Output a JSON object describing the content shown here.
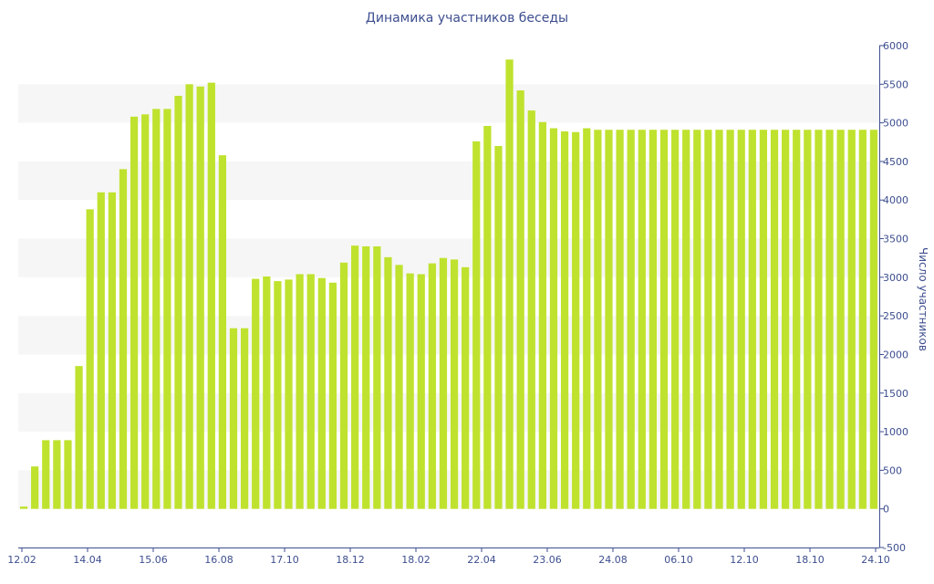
{
  "chart_data": {
    "type": "bar",
    "title": "Динамика участников беседы",
    "xlabel": "",
    "ylabel": "Число участников",
    "ylim": [
      -500,
      6000
    ],
    "yticks": [
      -500,
      0,
      500,
      1000,
      1500,
      2000,
      2500,
      3000,
      3500,
      4000,
      4500,
      5000,
      5500,
      6000
    ],
    "x_tick_labels": [
      "12.02",
      "14.04",
      "15.06",
      "16.08",
      "17.10",
      "18.12",
      "18.02",
      "22.04",
      "23.06",
      "24.08",
      "06.10",
      "12.10",
      "18.10",
      "24.10"
    ],
    "grid": "alternating horizontal bands",
    "color": "#bfe22e",
    "series": [
      {
        "values": [
          30,
          550,
          890,
          890,
          890,
          1850,
          3880,
          4100,
          4100,
          4400,
          5080,
          5110,
          5180,
          5180,
          5350,
          5500,
          5470,
          5520,
          4580,
          2340,
          2340,
          2980,
          3010,
          2950,
          2970,
          3040,
          3040,
          2990,
          2930,
          3190,
          3410,
          3400,
          3400,
          3260,
          3160,
          3050,
          3040,
          3180,
          3250,
          3230,
          3130,
          4760,
          4960,
          4700,
          5820,
          5420,
          5160,
          5010,
          4930,
          4890,
          4880,
          4930,
          4910,
          4910,
          4910,
          4910,
          4910,
          4910,
          4910,
          4910,
          4910,
          4910,
          4910,
          4910,
          4910,
          4910,
          4910,
          4910,
          4910,
          4910,
          4910,
          4910,
          4910,
          4910,
          4910,
          4910,
          4910,
          4910
        ]
      }
    ]
  }
}
